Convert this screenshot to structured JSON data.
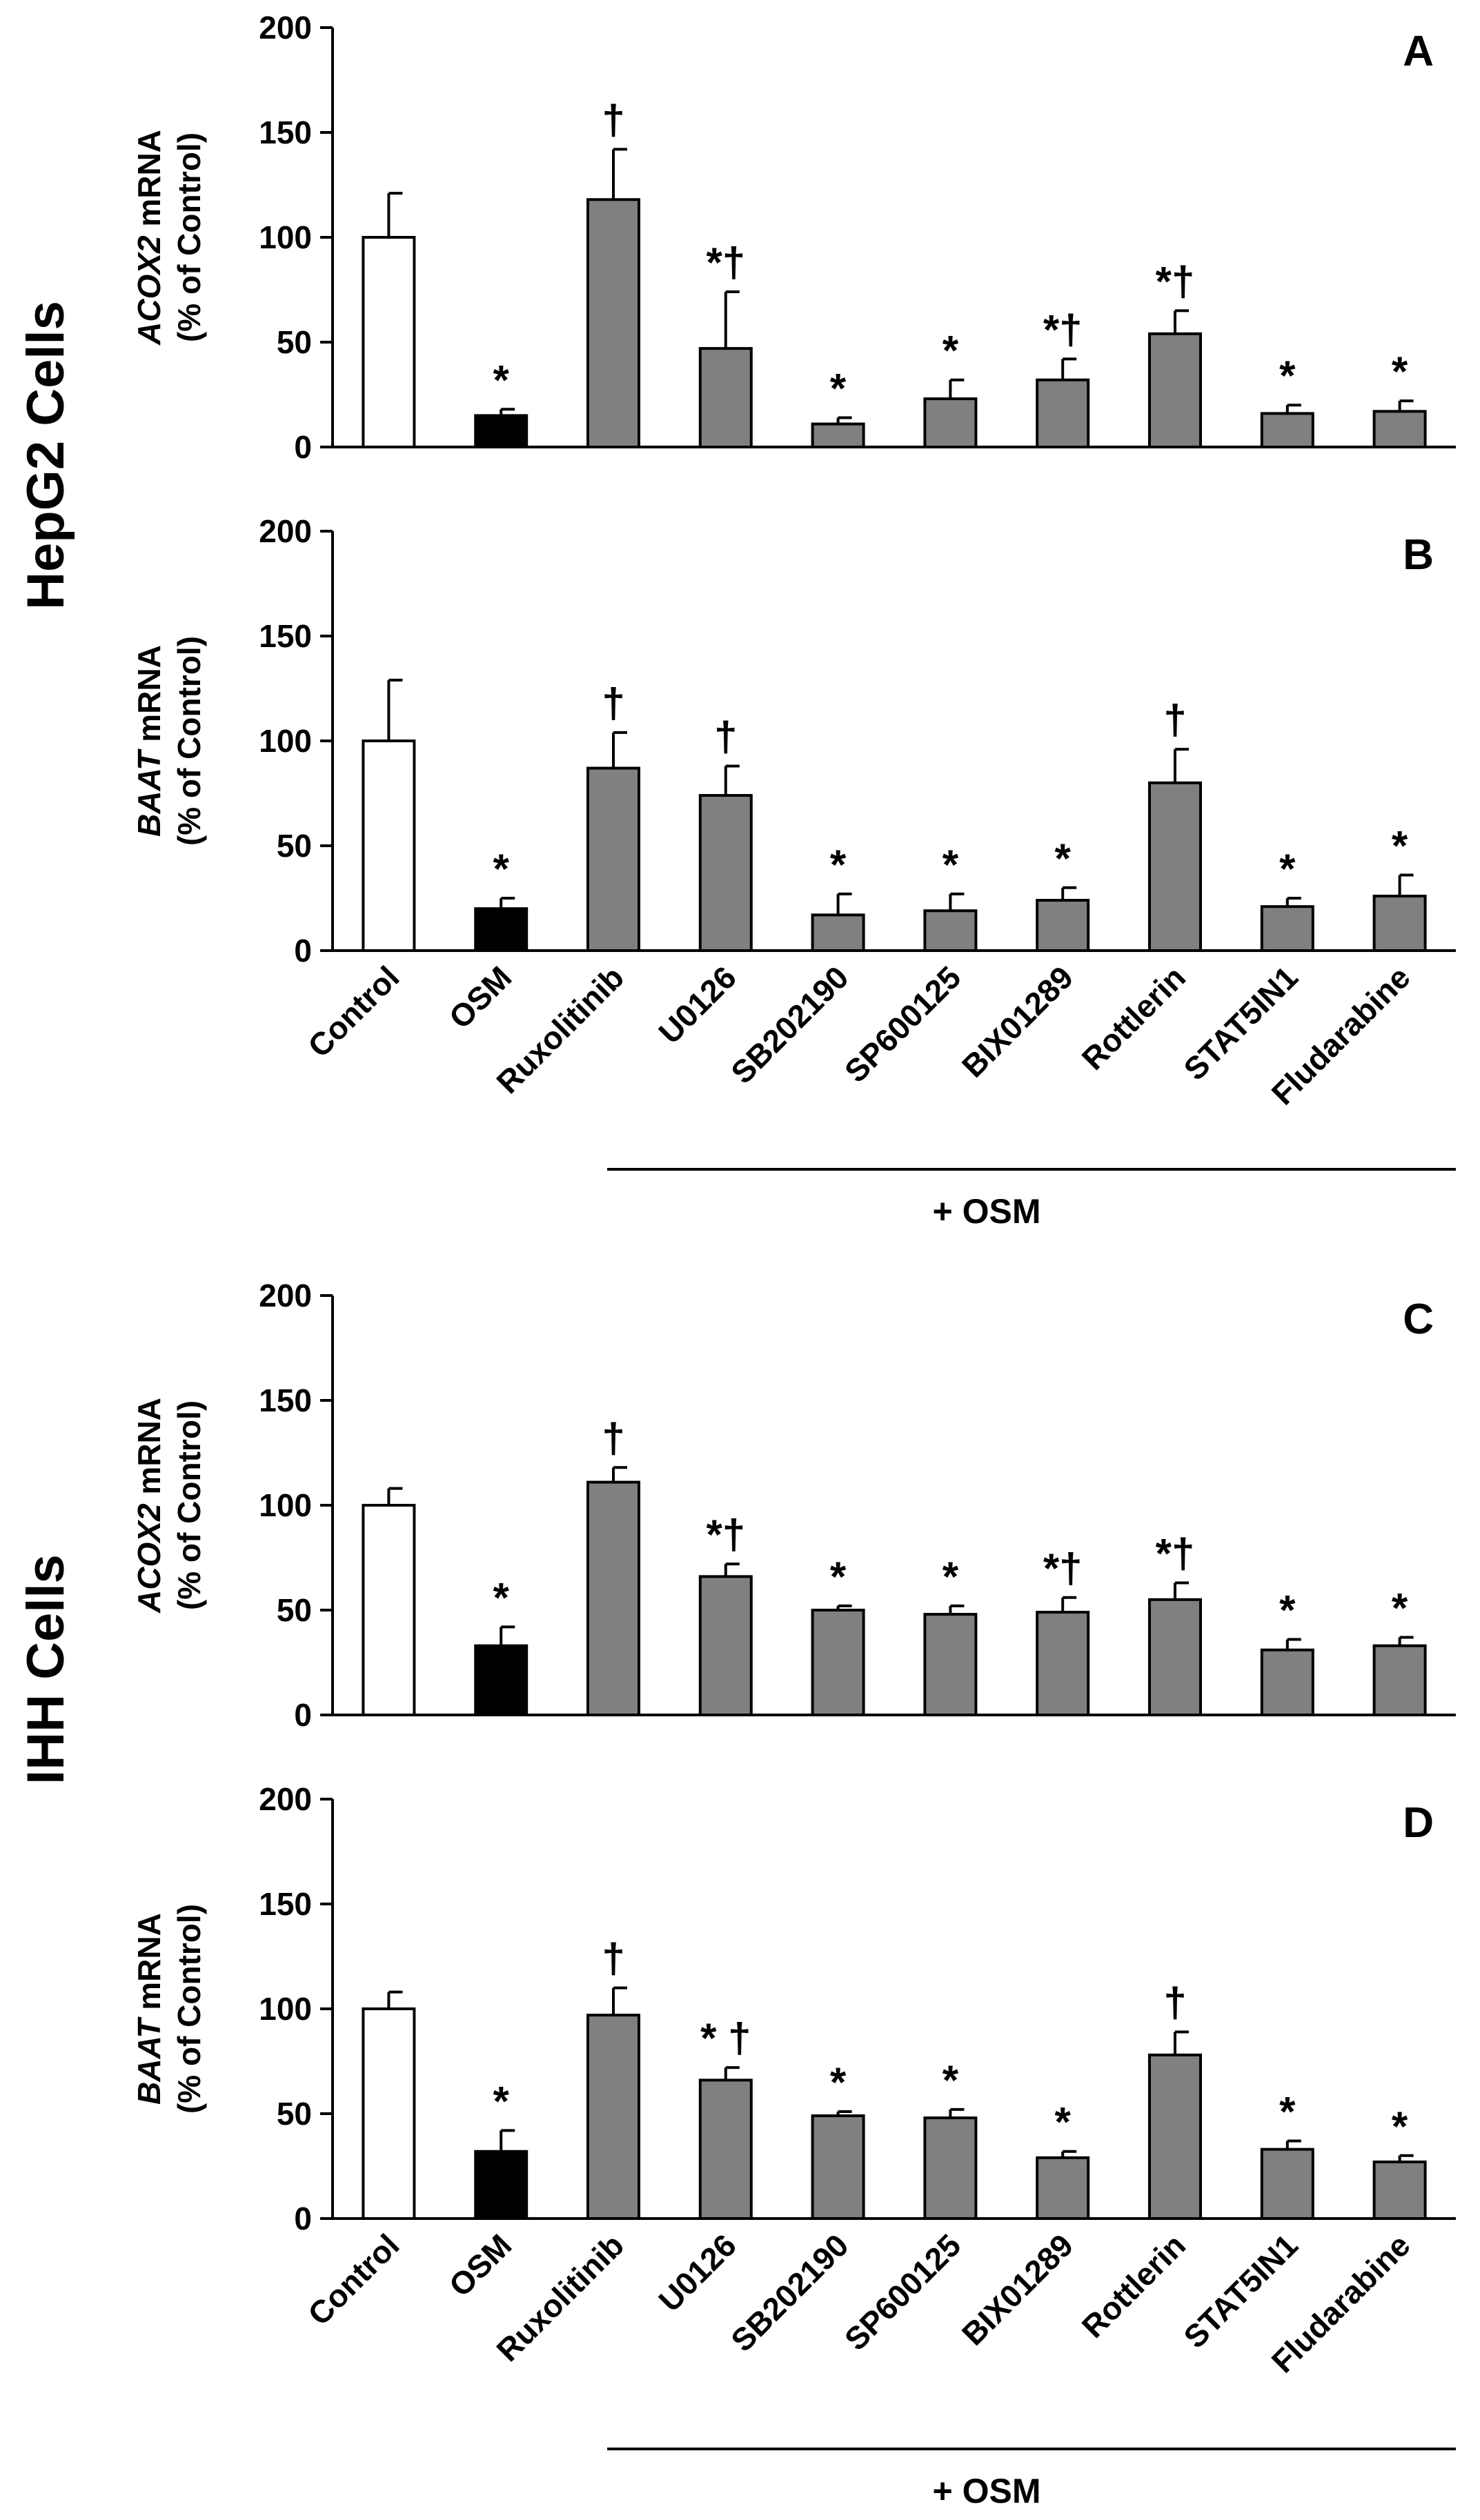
{
  "colors": {
    "control": "#ffffff",
    "osm": "#000000",
    "treated": "#808080",
    "axis": "#000000"
  },
  "figure": {
    "cell_labels": {
      "top": "HepG2 Cells",
      "bottom": "IHH Cells"
    },
    "group_label": "+ OSM",
    "categories": [
      "Control",
      "OSM",
      "Ruxolitinib",
      "U0126",
      "SB202190",
      "SP600125",
      "BIX01289",
      "Rottlerin",
      "STAT5IN1",
      "Fludarabine"
    ]
  },
  "chart_data": [
    {
      "type": "bar",
      "panel": "A",
      "cells": "HepG2",
      "ylabel_gene": "ACOX2",
      "ylabel_rest": " mRNA",
      "ylabel_line2": "(% of Control)",
      "ylim": [
        0,
        200
      ],
      "yticks": [
        0,
        50,
        100,
        150,
        200
      ],
      "categories": [
        "Control",
        "OSM",
        "Ruxolitinib",
        "U0126",
        "SB202190",
        "SP600125",
        "BIX01289",
        "Rottlerin",
        "STAT5IN1",
        "Fludarabine"
      ],
      "values": [
        100,
        15,
        118,
        47,
        11,
        23,
        32,
        54,
        16,
        17
      ],
      "errors": [
        21,
        3,
        24,
        27,
        3,
        9,
        10,
        11,
        4,
        5
      ],
      "significance": [
        "",
        "*",
        "†",
        "*†",
        "*",
        "*",
        "*†",
        "*†",
        "*",
        "*"
      ]
    },
    {
      "type": "bar",
      "panel": "B",
      "cells": "HepG2",
      "ylabel_gene": "BAAT",
      "ylabel_rest": " mRNA",
      "ylabel_line2": "(% of Control)",
      "ylim": [
        0,
        200
      ],
      "yticks": [
        0,
        50,
        100,
        150,
        200
      ],
      "categories": [
        "Control",
        "OSM",
        "Ruxolitinib",
        "U0126",
        "SB202190",
        "SP600125",
        "BIX01289",
        "Rottlerin",
        "STAT5IN1",
        "Fludarabine"
      ],
      "values": [
        100,
        20,
        87,
        74,
        17,
        19,
        24,
        80,
        21,
        26
      ],
      "errors": [
        29,
        5,
        17,
        14,
        10,
        8,
        6,
        16,
        4,
        10
      ],
      "significance": [
        "",
        "*",
        "†",
        "†",
        "*",
        "*",
        "*",
        "†",
        "*",
        "*"
      ]
    },
    {
      "type": "bar",
      "panel": "C",
      "cells": "IHH",
      "ylabel_gene": "ACOX2",
      "ylabel_rest": " mRNA",
      "ylabel_line2": "(% of Control)",
      "ylim": [
        0,
        200
      ],
      "yticks": [
        0,
        50,
        100,
        150,
        200
      ],
      "categories": [
        "Control",
        "OSM",
        "Ruxolitinib",
        "U0126",
        "SB202190",
        "SP600125",
        "BIX01289",
        "Rottlerin",
        "STAT5IN1",
        "Fludarabine"
      ],
      "values": [
        100,
        33,
        111,
        66,
        50,
        48,
        49,
        55,
        31,
        33
      ],
      "errors": [
        8,
        9,
        7,
        6,
        2,
        4,
        7,
        8,
        5,
        4
      ],
      "significance": [
        "",
        "*",
        "†",
        "*†",
        "*",
        "*",
        "*†",
        "*†",
        "*",
        "*"
      ]
    },
    {
      "type": "bar",
      "panel": "D",
      "cells": "IHH",
      "ylabel_gene": "BAAT",
      "ylabel_rest": " mRNA",
      "ylabel_line2": "(% of Control)",
      "ylim": [
        0,
        200
      ],
      "yticks": [
        0,
        50,
        100,
        150,
        200
      ],
      "categories": [
        "Control",
        "OSM",
        "Ruxolitinib",
        "U0126",
        "SB202190",
        "SP600125",
        "BIX01289",
        "Rottlerin",
        "STAT5IN1",
        "Fludarabine"
      ],
      "values": [
        100,
        32,
        97,
        66,
        49,
        48,
        29,
        78,
        33,
        27
      ],
      "errors": [
        8,
        10,
        13,
        6,
        2,
        4,
        3,
        11,
        4,
        3
      ],
      "significance": [
        "",
        "*",
        "†",
        "* †",
        "*",
        "*",
        "*",
        "†",
        "*",
        "*"
      ]
    }
  ]
}
